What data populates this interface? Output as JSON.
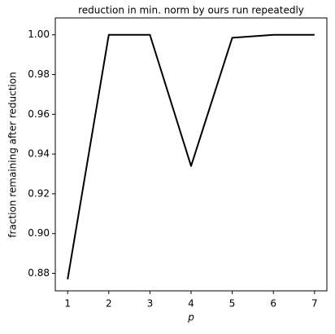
{
  "chart_data": {
    "type": "line",
    "title": "reduction in min. norm by ours run repeatedly",
    "x_label": "p",
    "y_label": "fraction remaining after reduction",
    "x": [
      1,
      2,
      3,
      4,
      5,
      6,
      7
    ],
    "series": [
      {
        "name": "ours",
        "color": "#000000",
        "values": [
          0.877,
          1.0,
          1.0,
          0.934,
          0.9985,
          1.0,
          1.0
        ]
      }
    ],
    "xlim": [
      0.7,
      7.3
    ],
    "xticks": [
      1,
      2,
      3,
      4,
      5,
      6,
      7
    ],
    "ylim": [
      0.8712,
      1.0085
    ],
    "yticks": [
      0.88,
      {
        "value": 0.9,
        "label": "0.90"
      },
      0.92,
      0.94,
      0.96,
      0.98,
      {
        "value": 1.0,
        "label": "1.00"
      }
    ]
  }
}
